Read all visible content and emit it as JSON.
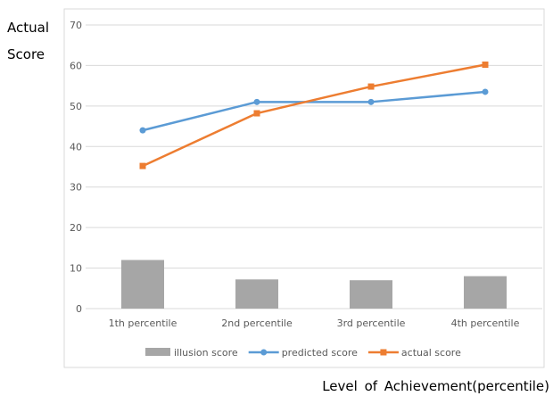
{
  "chart_data": {
    "type": "bar+line",
    "categories": [
      "1th percentile",
      "2nd percentile",
      "3rd percentile",
      "4th percentile"
    ],
    "ylim": [
      0,
      70
    ],
    "yticks": [
      0,
      10,
      20,
      30,
      40,
      50,
      60,
      70
    ],
    "ylabel_line1": "Actual",
    "ylabel_line2": "Score",
    "xlabel": "Level of Achievement(percentile)",
    "grid": true,
    "legend_position": "bottom",
    "series": [
      {
        "name": "illusion score",
        "kind": "bar",
        "color": "#a6a6a6",
        "values": [
          12,
          7.2,
          7,
          8
        ]
      },
      {
        "name": "predicted score",
        "kind": "line",
        "color": "#5b9bd5",
        "marker": "circle",
        "values": [
          44,
          51,
          51,
          53.5
        ]
      },
      {
        "name": "actual score",
        "kind": "line",
        "color": "#ed7d31",
        "marker": "square",
        "values": [
          35.2,
          48.2,
          54.8,
          60.2
        ]
      }
    ]
  }
}
